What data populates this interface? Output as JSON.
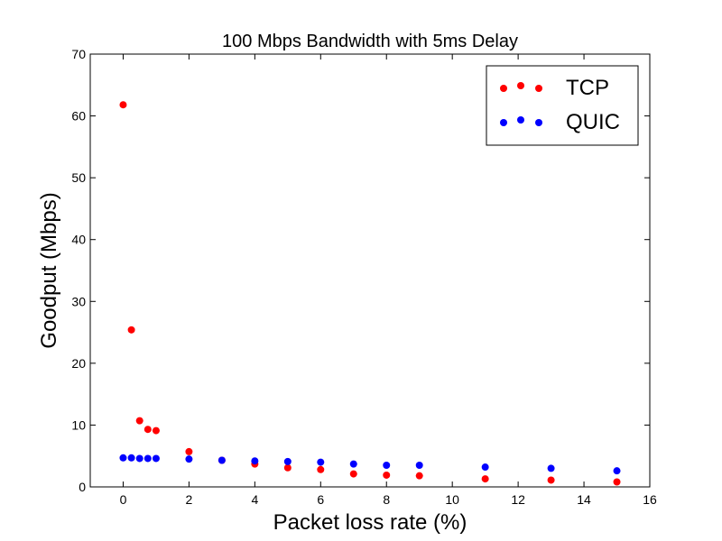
{
  "chart_data": {
    "type": "scatter",
    "title": "100 Mbps Bandwidth with 5ms Delay",
    "xlabel": "Packet loss rate (%)",
    "ylabel": "Goodput (Mbps)",
    "xlim": [
      -1,
      16
    ],
    "ylim": [
      0,
      70
    ],
    "xticks": [
      0,
      2,
      4,
      6,
      8,
      10,
      12,
      14,
      16
    ],
    "yticks": [
      0,
      10,
      20,
      30,
      40,
      50,
      60,
      70
    ],
    "grid": false,
    "legend_position": "top-right",
    "series": [
      {
        "name": "TCP",
        "color": "#ff0000",
        "points": [
          {
            "x": 0,
            "y": 61.8
          },
          {
            "x": 0.25,
            "y": 25.4
          },
          {
            "x": 0.5,
            "y": 10.7
          },
          {
            "x": 0.75,
            "y": 9.3
          },
          {
            "x": 1,
            "y": 9.1
          },
          {
            "x": 2,
            "y": 5.7
          },
          {
            "x": 3,
            "y": 4.3
          },
          {
            "x": 4,
            "y": 3.7
          },
          {
            "x": 5,
            "y": 3.1
          },
          {
            "x": 6,
            "y": 2.8
          },
          {
            "x": 7,
            "y": 2.1
          },
          {
            "x": 8,
            "y": 1.9
          },
          {
            "x": 9,
            "y": 1.8
          },
          {
            "x": 11,
            "y": 1.3
          },
          {
            "x": 13,
            "y": 1.1
          },
          {
            "x": 15,
            "y": 0.8
          }
        ]
      },
      {
        "name": "QUIC",
        "color": "#0000ff",
        "points": [
          {
            "x": 0,
            "y": 4.7
          },
          {
            "x": 0.25,
            "y": 4.7
          },
          {
            "x": 0.5,
            "y": 4.6
          },
          {
            "x": 0.75,
            "y": 4.6
          },
          {
            "x": 1,
            "y": 4.6
          },
          {
            "x": 2,
            "y": 4.5
          },
          {
            "x": 3,
            "y": 4.3
          },
          {
            "x": 4,
            "y": 4.2
          },
          {
            "x": 5,
            "y": 4.1
          },
          {
            "x": 6,
            "y": 4.0
          },
          {
            "x": 7,
            "y": 3.7
          },
          {
            "x": 8,
            "y": 3.5
          },
          {
            "x": 9,
            "y": 3.5
          },
          {
            "x": 11,
            "y": 3.2
          },
          {
            "x": 13,
            "y": 3.0
          },
          {
            "x": 15,
            "y": 2.6
          }
        ]
      }
    ]
  }
}
